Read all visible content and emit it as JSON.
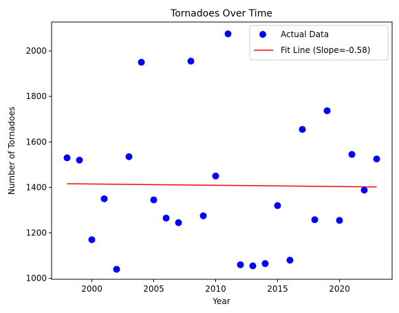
{
  "chart_data": {
    "type": "scatter",
    "title": "Tornadoes Over Time",
    "xlabel": "Year",
    "ylabel": "Number of Tornadoes",
    "xlim": [
      1996.75,
      2024.25
    ],
    "ylim": [
      996,
      2127
    ],
    "xticks": [
      2000,
      2005,
      2010,
      2015,
      2020
    ],
    "yticks": [
      1000,
      1200,
      1400,
      1600,
      1800,
      2000
    ],
    "grid": false,
    "legend_position": "top-right",
    "series": [
      {
        "name": "Actual Data",
        "kind": "scatter",
        "color": "#0000ff",
        "points": [
          {
            "x": 1998,
            "y": 1530
          },
          {
            "x": 1999,
            "y": 1520
          },
          {
            "x": 2000,
            "y": 1170
          },
          {
            "x": 2001,
            "y": 1350
          },
          {
            "x": 2002,
            "y": 1040
          },
          {
            "x": 2003,
            "y": 1535
          },
          {
            "x": 2004,
            "y": 1950
          },
          {
            "x": 2005,
            "y": 1345
          },
          {
            "x": 2006,
            "y": 1265
          },
          {
            "x": 2007,
            "y": 1245
          },
          {
            "x": 2008,
            "y": 1955
          },
          {
            "x": 2009,
            "y": 1275
          },
          {
            "x": 2010,
            "y": 1450
          },
          {
            "x": 2011,
            "y": 2075
          },
          {
            "x": 2012,
            "y": 1060
          },
          {
            "x": 2013,
            "y": 1055
          },
          {
            "x": 2014,
            "y": 1065
          },
          {
            "x": 2015,
            "y": 1320
          },
          {
            "x": 2016,
            "y": 1080
          },
          {
            "x": 2017,
            "y": 1655
          },
          {
            "x": 2018,
            "y": 1258
          },
          {
            "x": 2019,
            "y": 1737
          },
          {
            "x": 2020,
            "y": 1255
          },
          {
            "x": 2021,
            "y": 1545
          },
          {
            "x": 2022,
            "y": 1388
          },
          {
            "x": 2023,
            "y": 1525
          }
        ]
      },
      {
        "name": "Fit Line (Slope=-0.58)",
        "kind": "line",
        "color": "#ff0000",
        "points": [
          {
            "x": 1998,
            "y": 1416
          },
          {
            "x": 2023,
            "y": 1402
          }
        ]
      }
    ]
  }
}
